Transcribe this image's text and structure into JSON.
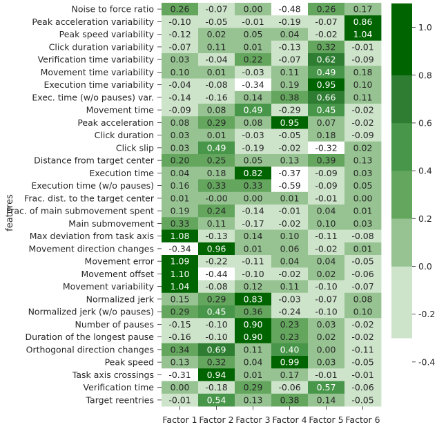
{
  "chart_data": {
    "type": "heatmap",
    "ylabel": "features",
    "xlabel": "",
    "columns": [
      "Factor 1",
      "Factor 2",
      "Factor 3",
      "Factor 4",
      "Factor 5",
      "Factor 6"
    ],
    "rows": [
      "Noise to force ratio",
      "Peak acceleration variability",
      "Peak speed variability",
      "Click duration variability",
      "Verification time variability",
      "Movement time variability",
      "Execution time variability",
      "Exec. time (w/o pauses) var.",
      "Movement time",
      "Peak acceleration",
      "Click duration",
      "Click slip",
      "Distance from target center",
      "Execution time",
      "Execution time (w/o pauses)",
      "Frac. dist. to the target center",
      "Frac. of main submovement spent",
      "Main submovement",
      "Max deviation from task axis",
      "Movement direction changes",
      "Movement error",
      "Movement offset",
      "Movement variability",
      "Normalized jerk",
      "Normalized jerk (w/o pauses)",
      "Number of pauses",
      "Duration of the longest pause",
      "Orthogonal direction changes",
      "Peak speed",
      "Task axis crossings",
      "Verification time",
      "Target reentries"
    ],
    "values": [
      [
        "0.26",
        "-0.07",
        "0.00",
        "-0.48",
        "0.26",
        "0.17"
      ],
      [
        "-0.10",
        "-0.05",
        "-0.01",
        "-0.19",
        "-0.07",
        "0.86"
      ],
      [
        "-0.12",
        "0.02",
        "0.05",
        "0.04",
        "-0.02",
        "1.04"
      ],
      [
        "-0.07",
        "0.11",
        "0.01",
        "-0.13",
        "0.32",
        "-0.01"
      ],
      [
        "0.03",
        "-0.04",
        "0.22",
        "-0.07",
        "0.62",
        "-0.09"
      ],
      [
        "0.10",
        "0.01",
        "-0.03",
        "0.11",
        "0.49",
        "0.18"
      ],
      [
        "-0.04",
        "-0.08",
        "-0.34",
        "0.19",
        "0.95",
        "0.10"
      ],
      [
        "-0.14",
        "-0.16",
        "0.14",
        "0.38",
        "0.66",
        "0.11"
      ],
      [
        "-0.09",
        "0.08",
        "0.49",
        "-0.29",
        "0.45",
        "-0.02"
      ],
      [
        "0.08",
        "0.29",
        "0.08",
        "0.95",
        "0.07",
        "-0.02"
      ],
      [
        "0.03",
        "0.01",
        "-0.03",
        "-0.05",
        "0.18",
        "-0.09"
      ],
      [
        "0.03",
        "0.49",
        "-0.19",
        "-0.02",
        "-0.32",
        "0.02"
      ],
      [
        "0.20",
        "0.25",
        "0.05",
        "0.13",
        "0.39",
        "0.13"
      ],
      [
        "0.04",
        "0.18",
        "0.82",
        "-0.37",
        "-0.09",
        "0.03"
      ],
      [
        "0.16",
        "0.33",
        "0.33",
        "-0.59",
        "-0.09",
        "0.05"
      ],
      [
        "0.01",
        "-0.00",
        "0.00",
        "0.01",
        "-0.01",
        "0.00"
      ],
      [
        "0.19",
        "0.24",
        "-0.14",
        "-0.01",
        "0.04",
        "0.01"
      ],
      [
        "0.33",
        "0.11",
        "-0.17",
        "-0.02",
        "0.10",
        "0.03"
      ],
      [
        "1.08",
        "-0.13",
        "0.14",
        "0.10",
        "-0.11",
        "-0.08"
      ],
      [
        "-0.34",
        "0.96",
        "0.01",
        "0.06",
        "-0.02",
        "0.01"
      ],
      [
        "1.09",
        "-0.22",
        "-0.11",
        "0.04",
        "0.04",
        "-0.05"
      ],
      [
        "1.10",
        "-0.44",
        "-0.10",
        "-0.02",
        "0.02",
        "-0.06"
      ],
      [
        "1.04",
        "-0.08",
        "0.12",
        "0.11",
        "-0.10",
        "-0.07"
      ],
      [
        "0.15",
        "0.29",
        "0.83",
        "-0.03",
        "-0.07",
        "0.08"
      ],
      [
        "0.29",
        "0.45",
        "0.36",
        "-0.24",
        "-0.10",
        "0.10"
      ],
      [
        "-0.15",
        "-0.10",
        "0.90",
        "0.23",
        "0.03",
        "-0.02"
      ],
      [
        "-0.16",
        "-0.10",
        "0.90",
        "0.23",
        "0.02",
        "-0.02"
      ],
      [
        "0.34",
        "0.69",
        "0.11",
        "0.40",
        "0.00",
        "-0.11"
      ],
      [
        "0.13",
        "0.32",
        "0.04",
        "0.99",
        "0.03",
        "-0.05"
      ],
      [
        "-0.31",
        "0.94",
        "0.01",
        "0.17",
        "-0.01",
        "-0.01"
      ],
      [
        "0.00",
        "-0.18",
        "0.29",
        "-0.06",
        "0.57",
        "-0.06"
      ],
      [
        "-0.01",
        "0.54",
        "0.13",
        "0.38",
        "0.14",
        "-0.05"
      ]
    ],
    "colorbar": {
      "ticks": [
        "1.0",
        "0.8",
        "0.6",
        "0.4",
        "0.2",
        "0.0",
        "-0.2",
        "-0.4"
      ],
      "tick_values": [
        1.0,
        0.8,
        0.6,
        0.4,
        0.2,
        0.0,
        -0.2,
        -0.4
      ],
      "range": [
        -0.6,
        1.1
      ],
      "bins": [
        {
          "from": -0.6,
          "to": -0.3,
          "color": "#ffffff"
        },
        {
          "from": -0.3,
          "to": 0.0,
          "color": "#cde3ca"
        },
        {
          "from": 0.0,
          "to": 0.2,
          "color": "#96c391"
        },
        {
          "from": 0.2,
          "to": 0.4,
          "color": "#64a65e"
        },
        {
          "from": 0.4,
          "to": 0.6,
          "color": "#48964a"
        },
        {
          "from": 0.6,
          "to": 0.8,
          "color": "#2e7d32"
        },
        {
          "from": 0.8,
          "to": 1.1,
          "color": "#006400"
        }
      ]
    },
    "text_colors": {
      "light": "#ffffff",
      "dark": "#262626"
    },
    "grid": false
  }
}
